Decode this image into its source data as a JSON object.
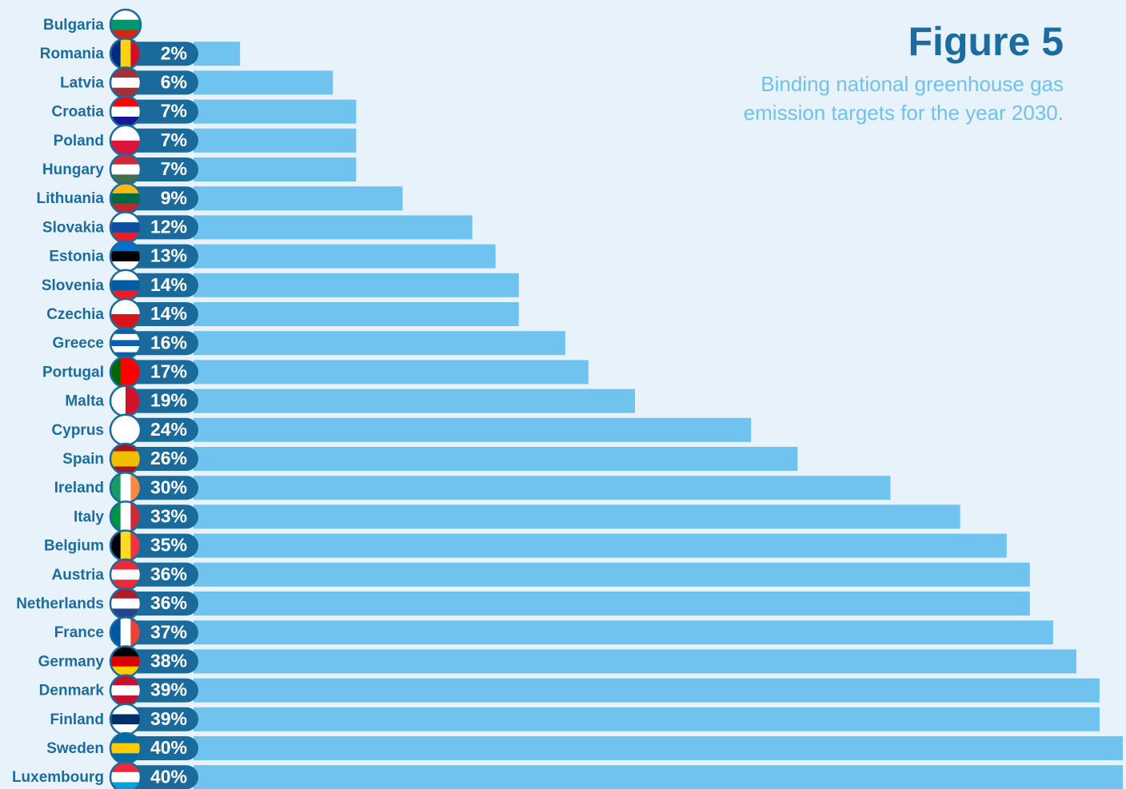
{
  "chart_data": {
    "type": "bar",
    "orientation": "horizontal",
    "title": "Figure 5",
    "subtitle": [
      "Binding national greenhouse gas",
      "emission targets for the year 2030."
    ],
    "categories": [
      "Bulgaria",
      "Romania",
      "Latvia",
      "Croatia",
      "Poland",
      "Hungary",
      "Lithuania",
      "Slovakia",
      "Estonia",
      "Slovenia",
      "Czechia",
      "Greece",
      "Portugal",
      "Malta",
      "Cyprus",
      "Spain",
      "Ireland",
      "Italy",
      "Belgium",
      "Austria",
      "Netherlands",
      "France",
      "Germany",
      "Denmark",
      "Finland",
      "Sweden",
      "Luxembourg"
    ],
    "values": [
      null,
      2,
      6,
      7,
      7,
      7,
      9,
      12,
      13,
      14,
      14,
      16,
      17,
      19,
      24,
      26,
      30,
      33,
      35,
      36,
      36,
      37,
      38,
      39,
      39,
      40,
      40
    ],
    "value_labels": [
      null,
      "2%",
      "6%",
      "7%",
      "7%",
      "7%",
      "9%",
      "12%",
      "13%",
      "14%",
      "14%",
      "16%",
      "17%",
      "19%",
      "24%",
      "26%",
      "30%",
      "33%",
      "35%",
      "36%",
      "36%",
      "37%",
      "38%",
      "39%",
      "39%",
      "40%",
      "40%"
    ],
    "color": "#70c3ee",
    "label_color": "#1a6a9c",
    "xlim": [
      0,
      40
    ]
  }
}
